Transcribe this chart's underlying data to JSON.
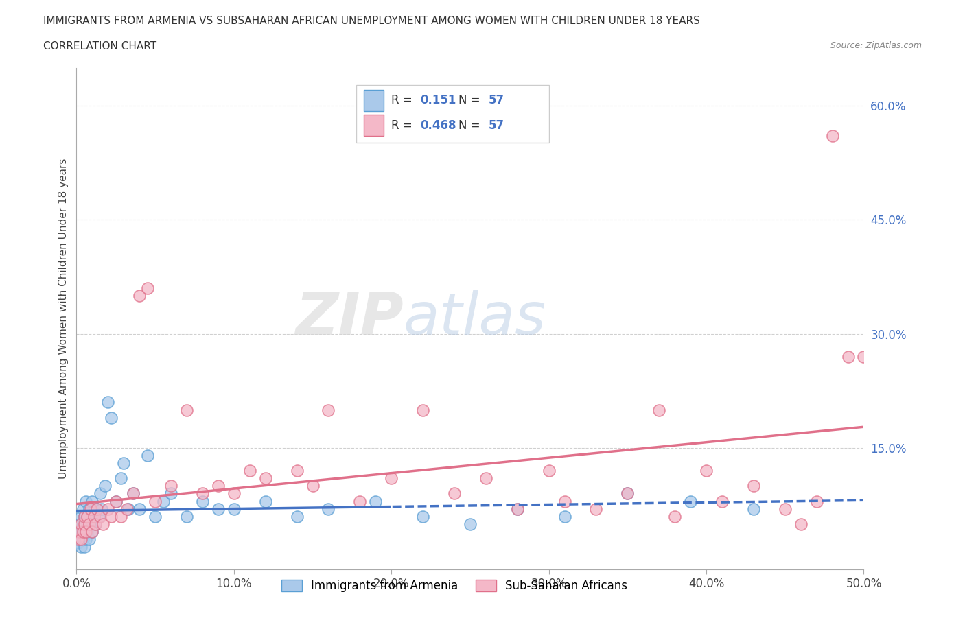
{
  "title": "IMMIGRANTS FROM ARMENIA VS SUBSAHARAN AFRICAN UNEMPLOYMENT AMONG WOMEN WITH CHILDREN UNDER 18 YEARS",
  "subtitle": "CORRELATION CHART",
  "source": "Source: ZipAtlas.com",
  "ylabel": "Unemployment Among Women with Children Under 18 years",
  "xlim": [
    0.0,
    0.5
  ],
  "ylim": [
    -0.01,
    0.65
  ],
  "xticks": [
    0.0,
    0.1,
    0.2,
    0.3,
    0.4,
    0.5
  ],
  "xtick_labels": [
    "0.0%",
    "10.0%",
    "20.0%",
    "30.0%",
    "40.0%",
    "50.0%"
  ],
  "yticks_right": [
    0.15,
    0.3,
    0.45,
    0.6
  ],
  "ytick_right_labels": [
    "15.0%",
    "30.0%",
    "45.0%",
    "60.0%"
  ],
  "grid_color": "#d0d0d0",
  "background_color": "#ffffff",
  "armenia_color": "#aac9ea",
  "armenia_edge_color": "#5a9fd4",
  "armenia_line_color": "#4472c4",
  "subsaharan_color": "#f4b8c8",
  "subsaharan_edge_color": "#e0708a",
  "subsaharan_line_color": "#e0708a",
  "armenia_R": 0.151,
  "armenia_N": 57,
  "subsaharan_R": 0.468,
  "subsaharan_N": 57,
  "legend_label_armenia": "Immigrants from Armenia",
  "legend_label_subsaharan": "Sub-Saharan Africans",
  "watermark_zip": "ZIP",
  "watermark_atlas": "atlas",
  "armenia_scatter_x": [
    0.001,
    0.001,
    0.002,
    0.002,
    0.003,
    0.003,
    0.003,
    0.004,
    0.004,
    0.004,
    0.005,
    0.005,
    0.005,
    0.006,
    0.006,
    0.006,
    0.007,
    0.007,
    0.008,
    0.008,
    0.009,
    0.01,
    0.01,
    0.011,
    0.012,
    0.013,
    0.014,
    0.015,
    0.016,
    0.018,
    0.02,
    0.022,
    0.025,
    0.028,
    0.03,
    0.033,
    0.036,
    0.04,
    0.045,
    0.05,
    0.055,
    0.06,
    0.07,
    0.08,
    0.09,
    0.1,
    0.12,
    0.14,
    0.16,
    0.19,
    0.22,
    0.25,
    0.28,
    0.31,
    0.35,
    0.39,
    0.43
  ],
  "armenia_scatter_y": [
    0.04,
    0.025,
    0.03,
    0.05,
    0.02,
    0.04,
    0.06,
    0.03,
    0.05,
    0.07,
    0.02,
    0.04,
    0.06,
    0.03,
    0.055,
    0.08,
    0.04,
    0.06,
    0.03,
    0.07,
    0.05,
    0.04,
    0.08,
    0.06,
    0.05,
    0.07,
    0.06,
    0.09,
    0.07,
    0.1,
    0.21,
    0.19,
    0.08,
    0.11,
    0.13,
    0.07,
    0.09,
    0.07,
    0.14,
    0.06,
    0.08,
    0.09,
    0.06,
    0.08,
    0.07,
    0.07,
    0.08,
    0.06,
    0.07,
    0.08,
    0.06,
    0.05,
    0.07,
    0.06,
    0.09,
    0.08,
    0.07
  ],
  "subsaharan_scatter_x": [
    0.001,
    0.002,
    0.003,
    0.003,
    0.004,
    0.005,
    0.005,
    0.006,
    0.007,
    0.008,
    0.009,
    0.01,
    0.011,
    0.012,
    0.013,
    0.015,
    0.017,
    0.02,
    0.022,
    0.025,
    0.028,
    0.032,
    0.036,
    0.04,
    0.045,
    0.05,
    0.06,
    0.07,
    0.08,
    0.09,
    0.1,
    0.11,
    0.12,
    0.14,
    0.15,
    0.16,
    0.18,
    0.2,
    0.22,
    0.24,
    0.26,
    0.28,
    0.3,
    0.31,
    0.33,
    0.35,
    0.37,
    0.38,
    0.4,
    0.41,
    0.43,
    0.45,
    0.46,
    0.47,
    0.48,
    0.49,
    0.5
  ],
  "subsaharan_scatter_y": [
    0.03,
    0.04,
    0.03,
    0.05,
    0.04,
    0.05,
    0.06,
    0.04,
    0.06,
    0.05,
    0.07,
    0.04,
    0.06,
    0.05,
    0.07,
    0.06,
    0.05,
    0.07,
    0.06,
    0.08,
    0.06,
    0.07,
    0.09,
    0.35,
    0.36,
    0.08,
    0.1,
    0.2,
    0.09,
    0.1,
    0.09,
    0.12,
    0.11,
    0.12,
    0.1,
    0.2,
    0.08,
    0.11,
    0.2,
    0.09,
    0.11,
    0.07,
    0.12,
    0.08,
    0.07,
    0.09,
    0.2,
    0.06,
    0.12,
    0.08,
    0.1,
    0.07,
    0.05,
    0.08,
    0.56,
    0.27,
    0.27
  ]
}
